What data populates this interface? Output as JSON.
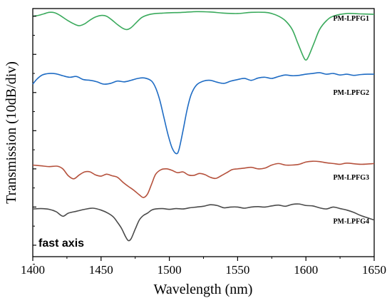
{
  "chart_data": {
    "type": "line",
    "title": "",
    "xlabel": "Wavelength (nm)",
    "ylabel": "Transmission (10dB/div)",
    "xlim": [
      1400,
      1650
    ],
    "x_ticks": [
      "1400",
      "1450",
      "1500",
      "1550",
      "1600",
      "1650"
    ],
    "y_tick_labels_shown": false,
    "grid": false,
    "annotation": "fast axis",
    "series": [
      {
        "name": "PM-LPFG1",
        "color": "#3aaa5c",
        "points": [
          [
            1400,
            -2.0
          ],
          [
            1404,
            -1.8
          ],
          [
            1408,
            -1.4
          ],
          [
            1412,
            -1.0
          ],
          [
            1416,
            -1.1
          ],
          [
            1420,
            -1.8
          ],
          [
            1425,
            -3.0
          ],
          [
            1430,
            -4.0
          ],
          [
            1434,
            -4.5
          ],
          [
            1438,
            -4.0
          ],
          [
            1442,
            -3.0
          ],
          [
            1446,
            -2.2
          ],
          [
            1450,
            -1.8
          ],
          [
            1454,
            -2.0
          ],
          [
            1458,
            -3.0
          ],
          [
            1462,
            -4.2
          ],
          [
            1466,
            -5.2
          ],
          [
            1469,
            -5.5
          ],
          [
            1472,
            -5.0
          ],
          [
            1476,
            -3.6
          ],
          [
            1480,
            -2.3
          ],
          [
            1485,
            -1.6
          ],
          [
            1490,
            -1.3
          ],
          [
            1495,
            -1.2
          ],
          [
            1500,
            -1.1
          ],
          [
            1510,
            -1.0
          ],
          [
            1520,
            -0.8
          ],
          [
            1530,
            -0.9
          ],
          [
            1540,
            -1.2
          ],
          [
            1550,
            -1.3
          ],
          [
            1560,
            -1.0
          ],
          [
            1570,
            -1.0
          ],
          [
            1575,
            -1.3
          ],
          [
            1580,
            -2.0
          ],
          [
            1585,
            -3.2
          ],
          [
            1590,
            -5.5
          ],
          [
            1594,
            -9.0
          ],
          [
            1598,
            -12.5
          ],
          [
            1600,
            -13.5
          ],
          [
            1602,
            -12.5
          ],
          [
            1606,
            -9.0
          ],
          [
            1610,
            -5.5
          ],
          [
            1615,
            -3.2
          ],
          [
            1620,
            -2.0
          ],
          [
            1630,
            -1.3
          ],
          [
            1640,
            -1.4
          ],
          [
            1650,
            -1.5
          ]
        ]
      },
      {
        "name": "PM-LPFG2",
        "color": "#1f6cc4",
        "points": [
          [
            1400,
            -19.8
          ],
          [
            1403,
            -18.5
          ],
          [
            1407,
            -17.4
          ],
          [
            1412,
            -17.0
          ],
          [
            1417,
            -17.1
          ],
          [
            1422,
            -17.6
          ],
          [
            1427,
            -18.0
          ],
          [
            1432,
            -17.8
          ],
          [
            1437,
            -18.6
          ],
          [
            1442,
            -18.8
          ],
          [
            1447,
            -19.2
          ],
          [
            1452,
            -19.8
          ],
          [
            1457,
            -19.6
          ],
          [
            1462,
            -19.0
          ],
          [
            1467,
            -19.2
          ],
          [
            1472,
            -18.8
          ],
          [
            1477,
            -18.3
          ],
          [
            1482,
            -18.2
          ],
          [
            1487,
            -19.0
          ],
          [
            1490,
            -20.8
          ],
          [
            1493,
            -24.0
          ],
          [
            1496,
            -28.5
          ],
          [
            1499,
            -33.0
          ],
          [
            1502,
            -36.5
          ],
          [
            1505,
            -38.0
          ],
          [
            1507,
            -37.0
          ],
          [
            1510,
            -32.0
          ],
          [
            1513,
            -26.5
          ],
          [
            1516,
            -22.5
          ],
          [
            1520,
            -20.0
          ],
          [
            1525,
            -19.0
          ],
          [
            1530,
            -18.8
          ],
          [
            1535,
            -19.3
          ],
          [
            1540,
            -19.6
          ],
          [
            1545,
            -19.0
          ],
          [
            1550,
            -18.6
          ],
          [
            1555,
            -18.3
          ],
          [
            1560,
            -18.8
          ],
          [
            1565,
            -18.2
          ],
          [
            1570,
            -18.0
          ],
          [
            1575,
            -18.3
          ],
          [
            1580,
            -17.8
          ],
          [
            1585,
            -17.4
          ],
          [
            1590,
            -17.6
          ],
          [
            1595,
            -17.5
          ],
          [
            1600,
            -17.2
          ],
          [
            1605,
            -17.0
          ],
          [
            1610,
            -16.8
          ],
          [
            1615,
            -17.2
          ],
          [
            1620,
            -17.0
          ],
          [
            1625,
            -17.4
          ],
          [
            1630,
            -17.2
          ],
          [
            1635,
            -17.5
          ],
          [
            1640,
            -17.3
          ],
          [
            1645,
            -17.2
          ],
          [
            1650,
            -17.2
          ]
        ]
      },
      {
        "name": "PM-LPFG3",
        "color": "#b5513c",
        "points": [
          [
            1400,
            -41.0
          ],
          [
            1406,
            -41.2
          ],
          [
            1412,
            -41.4
          ],
          [
            1418,
            -41.3
          ],
          [
            1422,
            -42.0
          ],
          [
            1426,
            -43.8
          ],
          [
            1430,
            -44.6
          ],
          [
            1434,
            -43.6
          ],
          [
            1438,
            -42.8
          ],
          [
            1442,
            -42.8
          ],
          [
            1446,
            -43.6
          ],
          [
            1450,
            -43.9
          ],
          [
            1454,
            -43.4
          ],
          [
            1458,
            -43.8
          ],
          [
            1462,
            -44.2
          ],
          [
            1466,
            -45.5
          ],
          [
            1470,
            -46.6
          ],
          [
            1474,
            -47.6
          ],
          [
            1478,
            -48.8
          ],
          [
            1481,
            -49.5
          ],
          [
            1484,
            -48.6
          ],
          [
            1487,
            -46.0
          ],
          [
            1490,
            -43.4
          ],
          [
            1494,
            -42.2
          ],
          [
            1498,
            -42.0
          ],
          [
            1502,
            -42.4
          ],
          [
            1506,
            -43.0
          ],
          [
            1510,
            -42.8
          ],
          [
            1514,
            -43.6
          ],
          [
            1518,
            -43.7
          ],
          [
            1522,
            -43.2
          ],
          [
            1526,
            -43.5
          ],
          [
            1530,
            -44.2
          ],
          [
            1534,
            -44.5
          ],
          [
            1538,
            -43.8
          ],
          [
            1542,
            -43.0
          ],
          [
            1546,
            -42.2
          ],
          [
            1550,
            -42.0
          ],
          [
            1555,
            -41.8
          ],
          [
            1560,
            -41.6
          ],
          [
            1565,
            -42.0
          ],
          [
            1570,
            -41.8
          ],
          [
            1575,
            -41.0
          ],
          [
            1580,
            -40.6
          ],
          [
            1585,
            -41.0
          ],
          [
            1590,
            -41.0
          ],
          [
            1595,
            -40.8
          ],
          [
            1600,
            -40.2
          ],
          [
            1605,
            -40.0
          ],
          [
            1610,
            -40.1
          ],
          [
            1615,
            -40.4
          ],
          [
            1620,
            -40.6
          ],
          [
            1625,
            -40.8
          ],
          [
            1630,
            -40.5
          ],
          [
            1640,
            -40.8
          ],
          [
            1650,
            -40.6
          ]
        ]
      },
      {
        "name": "PM-LPFG4",
        "color": "#4a4a4a",
        "points": [
          [
            1400,
            -52.5
          ],
          [
            1406,
            -52.4
          ],
          [
            1412,
            -52.6
          ],
          [
            1417,
            -53.2
          ],
          [
            1422,
            -54.4
          ],
          [
            1426,
            -53.6
          ],
          [
            1432,
            -53.1
          ],
          [
            1438,
            -52.6
          ],
          [
            1444,
            -52.3
          ],
          [
            1450,
            -52.8
          ],
          [
            1455,
            -53.6
          ],
          [
            1459,
            -54.6
          ],
          [
            1462,
            -56.0
          ],
          [
            1465,
            -57.6
          ],
          [
            1468,
            -59.8
          ],
          [
            1470,
            -60.8
          ],
          [
            1472,
            -60.3
          ],
          [
            1475,
            -57.8
          ],
          [
            1478,
            -55.4
          ],
          [
            1481,
            -54.2
          ],
          [
            1484,
            -53.6
          ],
          [
            1487,
            -52.8
          ],
          [
            1490,
            -52.5
          ],
          [
            1495,
            -52.4
          ],
          [
            1500,
            -52.6
          ],
          [
            1505,
            -52.4
          ],
          [
            1510,
            -52.5
          ],
          [
            1515,
            -52.2
          ],
          [
            1520,
            -52.0
          ],
          [
            1525,
            -51.8
          ],
          [
            1530,
            -51.4
          ],
          [
            1535,
            -51.6
          ],
          [
            1540,
            -52.2
          ],
          [
            1545,
            -52.0
          ],
          [
            1550,
            -52.0
          ],
          [
            1555,
            -52.3
          ],
          [
            1560,
            -52.0
          ],
          [
            1565,
            -51.9
          ],
          [
            1570,
            -52.0
          ],
          [
            1575,
            -51.7
          ],
          [
            1580,
            -51.5
          ],
          [
            1585,
            -51.8
          ],
          [
            1590,
            -51.3
          ],
          [
            1595,
            -51.2
          ],
          [
            1600,
            -51.6
          ],
          [
            1605,
            -51.7
          ],
          [
            1610,
            -52.2
          ],
          [
            1615,
            -52.5
          ],
          [
            1620,
            -52.0
          ],
          [
            1625,
            -52.4
          ],
          [
            1630,
            -52.8
          ],
          [
            1635,
            -53.4
          ],
          [
            1640,
            -54.2
          ],
          [
            1645,
            -54.8
          ],
          [
            1650,
            -55.4
          ]
        ]
      }
    ]
  }
}
